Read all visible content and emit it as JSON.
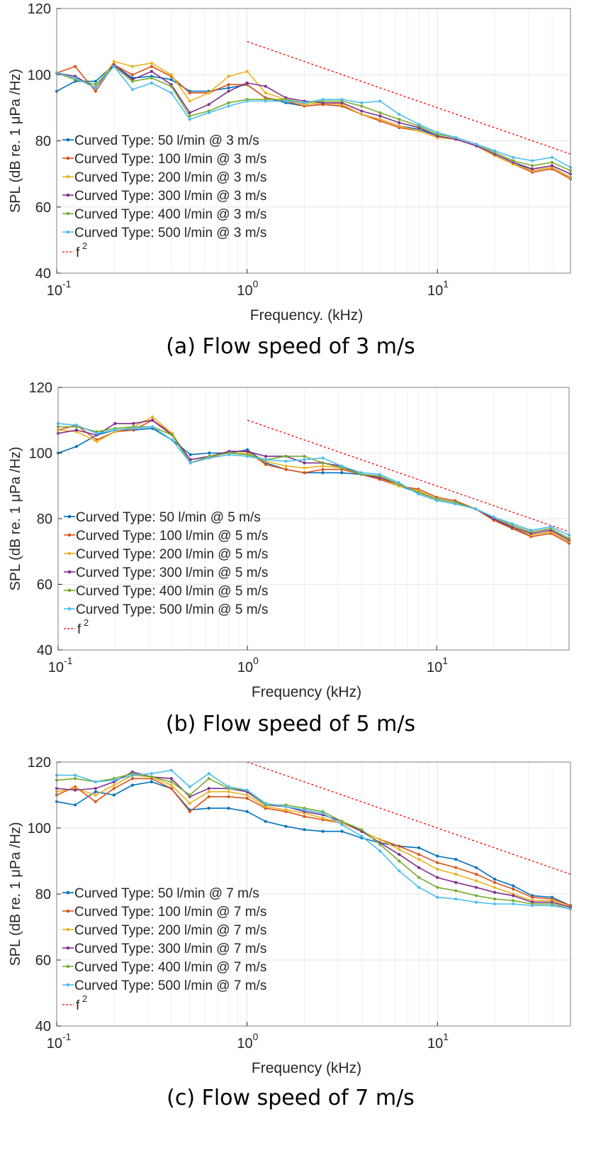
{
  "colors": {
    "series": [
      "#0072BD",
      "#D95319",
      "#EDB120",
      "#7E2F8E",
      "#77AC30",
      "#4DBEEE"
    ],
    "reference": "#FF0000",
    "grid": "#E6E6E6",
    "axis": "#262626"
  },
  "chart_data": [
    {
      "type": "line",
      "caption": "(a) Flow speed of 3 m/s",
      "xlabel": "Frequency. (kHz)",
      "ylabel": "SPL (dB re. 1 μPa /Hz)",
      "xscale": "log",
      "xlim": [
        0.1,
        50
      ],
      "ylim": [
        40,
        120
      ],
      "yticks": [
        40,
        60,
        80,
        100,
        120
      ],
      "xticks": [
        {
          "base": "10",
          "exp": "-1"
        },
        {
          "base": "10",
          "exp": "0"
        },
        {
          "base": "10",
          "exp": "1"
        }
      ],
      "grid": true,
      "legend": "lower-left",
      "x": [
        0.1,
        0.125,
        0.16,
        0.2,
        0.25,
        0.315,
        0.4,
        0.5,
        0.63,
        0.8,
        1.0,
        1.25,
        1.6,
        2.0,
        2.5,
        3.15,
        4.0,
        5.0,
        6.3,
        8.0,
        10,
        12.5,
        16,
        20,
        25,
        31.5,
        40,
        50
      ],
      "series": [
        {
          "name": "Curved Type: 50 l/min @ 3 m/s",
          "values": [
            95,
            98,
            98,
            103,
            99,
            99.5,
            98.5,
            95,
            95,
            96,
            97,
            93,
            91.5,
            90.5,
            91,
            90.5,
            88,
            86.5,
            84.5,
            83.5,
            81.5,
            80.5,
            78.5,
            76,
            73.5,
            71,
            72,
            69
          ]
        },
        {
          "name": "Curved Type: 100 l/min @ 3 m/s",
          "values": [
            100.5,
            102.5,
            95,
            103,
            100,
            102.5,
            99.5,
            94.5,
            94.5,
            97,
            97,
            93,
            92,
            90.5,
            91,
            90.5,
            88,
            86,
            84,
            83,
            81,
            80.5,
            78.5,
            75.5,
            73,
            70.5,
            71.5,
            68.5
          ]
        },
        {
          "name": "Curved Type: 200 l/min @ 3 m/s",
          "values": [
            100.5,
            99,
            96,
            104,
            102.5,
            103.5,
            100,
            92,
            94.5,
            99.5,
            101,
            94.5,
            92.5,
            91,
            91.5,
            91,
            88,
            86.5,
            84.5,
            83,
            81,
            80.5,
            78.5,
            75.5,
            73,
            71,
            72,
            69
          ]
        },
        {
          "name": "Curved Type: 300 l/min @ 3 m/s",
          "values": [
            100.5,
            99.5,
            96,
            103,
            98.5,
            101,
            97,
            88.5,
            91,
            95,
            97.5,
            96.5,
            93,
            92,
            91.5,
            91.5,
            89,
            87.5,
            85.5,
            84,
            81.5,
            80.5,
            78.5,
            76,
            73.5,
            71.5,
            72.5,
            70
          ]
        },
        {
          "name": "Curved Type: 400 l/min @ 3 m/s",
          "values": [
            100.5,
            98.5,
            97,
            102.5,
            98,
            99,
            96.5,
            87.5,
            89,
            91.5,
            92.5,
            92.5,
            92.5,
            91.5,
            92,
            92,
            90.5,
            88.5,
            86.5,
            84.5,
            82,
            81,
            79,
            76.5,
            74,
            72.5,
            73.5,
            71
          ]
        },
        {
          "name": "Curved Type: 500 l/min @ 3 m/s",
          "values": [
            100.5,
            99,
            96,
            102.5,
            95.5,
            97.5,
            94.5,
            86.5,
            88.5,
            90.5,
            92,
            92,
            92,
            91.5,
            92.5,
            92.5,
            91.5,
            92,
            88,
            85,
            82.5,
            81,
            79,
            77,
            75,
            74,
            75,
            72
          ]
        }
      ],
      "reference": {
        "name": "f",
        "exponent": "2",
        "x": [
          1,
          50
        ],
        "y": [
          110,
          76
        ]
      }
    },
    {
      "type": "line",
      "caption": "(b) Flow speed of 5 m/s",
      "xlabel": "Frequency (kHz)",
      "ylabel": "SPL (dB re. 1 μPa /Hz)",
      "xscale": "log",
      "xlim": [
        0.1,
        50
      ],
      "ylim": [
        40,
        120
      ],
      "yticks": [
        40,
        60,
        80,
        100,
        120
      ],
      "xticks": [
        {
          "base": "10",
          "exp": "-1"
        },
        {
          "base": "10",
          "exp": "0"
        },
        {
          "base": "10",
          "exp": "1"
        }
      ],
      "grid": true,
      "legend": "lower-left",
      "x": [
        0.1,
        0.125,
        0.16,
        0.2,
        0.25,
        0.315,
        0.4,
        0.5,
        0.63,
        0.8,
        1.0,
        1.25,
        1.6,
        2.0,
        2.5,
        3.15,
        4.0,
        5.0,
        6.3,
        8.0,
        10,
        12.5,
        16,
        20,
        25,
        31.5,
        40,
        50
      ],
      "series": [
        {
          "name": "Curved Type: 50 l/min @ 5 m/s",
          "values": [
            100,
            102,
            105.5,
            107,
            107,
            107.5,
            104,
            99.5,
            100,
            100,
            101,
            97,
            95,
            94,
            94,
            94,
            93.5,
            92,
            90,
            88,
            86,
            85,
            83,
            80,
            77,
            75,
            76,
            73
          ]
        },
        {
          "name": "Curved Type: 100 l/min @ 5 m/s",
          "values": [
            107,
            108.5,
            104,
            106.5,
            107,
            110,
            106,
            97,
            98.5,
            100.5,
            100.5,
            96.5,
            95,
            94,
            95,
            95,
            93.5,
            92,
            90,
            89,
            86.5,
            85.5,
            83,
            79.5,
            77,
            74.5,
            75.5,
            72.5
          ]
        },
        {
          "name": "Curved Type: 200 l/min @ 5 m/s",
          "values": [
            107,
            106.5,
            103.5,
            106.5,
            108,
            111,
            106,
            97,
            99,
            100,
            100,
            97.5,
            96,
            95.5,
            96,
            95.5,
            93.5,
            92.5,
            90,
            88.5,
            86,
            85,
            83,
            80,
            77.5,
            75,
            76,
            73
          ]
        },
        {
          "name": "Curved Type: 300 l/min @ 5 m/s",
          "values": [
            106,
            107,
            105.5,
            109,
            109,
            110,
            105.5,
            98,
            99,
            100.5,
            100.5,
            99,
            99,
            97,
            97,
            96,
            93.5,
            92.5,
            90.5,
            88,
            86,
            85,
            83,
            80,
            77.5,
            75.5,
            76.5,
            73.5
          ]
        },
        {
          "name": "Curved Type: 400 l/min @ 5 m/s",
          "values": [
            108,
            108,
            106.5,
            107.5,
            108,
            108,
            105.5,
            97,
            99,
            100,
            99.5,
            98,
            99,
            99,
            97,
            95.5,
            93.5,
            93,
            90.5,
            88,
            86,
            85,
            83,
            80.5,
            78,
            76,
            77,
            74
          ]
        },
        {
          "name": "Curved Type: 500 l/min @ 5 m/s",
          "values": [
            109,
            108.5,
            106,
            107,
            107.5,
            108,
            104,
            97,
            98.5,
            99.5,
            99,
            98,
            97.5,
            98,
            98.5,
            96,
            94,
            93.5,
            91,
            87.5,
            85.5,
            84.5,
            83,
            80.5,
            78.5,
            76.5,
            77.5,
            75
          ]
        }
      ],
      "reference": {
        "name": "f",
        "exponent": "2",
        "x": [
          1,
          50
        ],
        "y": [
          110,
          76
        ]
      }
    },
    {
      "type": "line",
      "caption": "(c) Flow speed of 7 m/s",
      "xlabel": "Frequency (kHz)",
      "ylabel": "SPL (dB re. 1 μPa /Hz)",
      "xscale": "log",
      "xlim": [
        0.1,
        50
      ],
      "ylim": [
        40,
        120
      ],
      "yticks": [
        40,
        60,
        80,
        100,
        120
      ],
      "xticks": [
        {
          "base": "10",
          "exp": "-1"
        },
        {
          "base": "10",
          "exp": "0"
        },
        {
          "base": "10",
          "exp": "1"
        }
      ],
      "grid": true,
      "legend": "lower-left",
      "x": [
        0.1,
        0.125,
        0.16,
        0.2,
        0.25,
        0.315,
        0.4,
        0.5,
        0.63,
        0.8,
        1.0,
        1.25,
        1.6,
        2.0,
        2.5,
        3.15,
        4.0,
        5.0,
        6.3,
        8.0,
        10,
        12.5,
        16,
        20,
        25,
        31.5,
        40,
        50
      ],
      "series": [
        {
          "name": "Curved Type: 50 l/min @ 7 m/s",
          "values": [
            108,
            107,
            111,
            110,
            113,
            114,
            112,
            105.5,
            106,
            106,
            105,
            102,
            100.5,
            99.5,
            99,
            99,
            97,
            95.5,
            94.5,
            94,
            91.5,
            90.5,
            88,
            84.5,
            82.5,
            79.5,
            79,
            76.5
          ]
        },
        {
          "name": "Curved Type: 100 l/min @ 7 m/s",
          "values": [
            110,
            112.5,
            108,
            112,
            115,
            115,
            112,
            105,
            109.5,
            109.5,
            109,
            106,
            105,
            103.5,
            102.5,
            101.5,
            99,
            96.5,
            94.5,
            92,
            89.5,
            88,
            86,
            83.5,
            81.5,
            79,
            78.5,
            76.5
          ]
        },
        {
          "name": "Curved Type: 200 l/min @ 7 m/s",
          "values": [
            111,
            112,
            110,
            113,
            116,
            115.5,
            113,
            107.5,
            111,
            111,
            110,
            106.5,
            105.5,
            104.5,
            103,
            101.5,
            99,
            96.5,
            93.5,
            90.5,
            87.5,
            86,
            84,
            82,
            80,
            78,
            78,
            76
          ]
        },
        {
          "name": "Curved Type: 300 l/min @ 7 m/s",
          "values": [
            112,
            111.5,
            112,
            114,
            117,
            115.5,
            115,
            109.5,
            112,
            112,
            111,
            107,
            106.5,
            105,
            104,
            102,
            99,
            95.5,
            92,
            88,
            85,
            83.5,
            82,
            80.5,
            79.5,
            77.5,
            77.5,
            76
          ]
        },
        {
          "name": "Curved Type: 400 l/min @ 7 m/s",
          "values": [
            114.5,
            115,
            114,
            115,
            116.5,
            115.5,
            114,
            110,
            115,
            112,
            111.5,
            107,
            107,
            106,
            105,
            102,
            99.5,
            95,
            90,
            85,
            82,
            81,
            79.5,
            78.5,
            78,
            77,
            77,
            75.5
          ]
        },
        {
          "name": "Curved Type: 500 l/min @ 7 m/s",
          "values": [
            116,
            116,
            114,
            114.5,
            116,
            116.5,
            117.5,
            112.5,
            116.5,
            112.5,
            111.5,
            107.5,
            106.5,
            105.5,
            104.5,
            101,
            97.5,
            93,
            87,
            82,
            79,
            78.5,
            77.5,
            77,
            77,
            76.5,
            76.5,
            75.5
          ]
        }
      ],
      "reference": {
        "name": "f",
        "exponent": "2",
        "x": [
          1,
          50
        ],
        "y": [
          120,
          86
        ]
      }
    }
  ]
}
